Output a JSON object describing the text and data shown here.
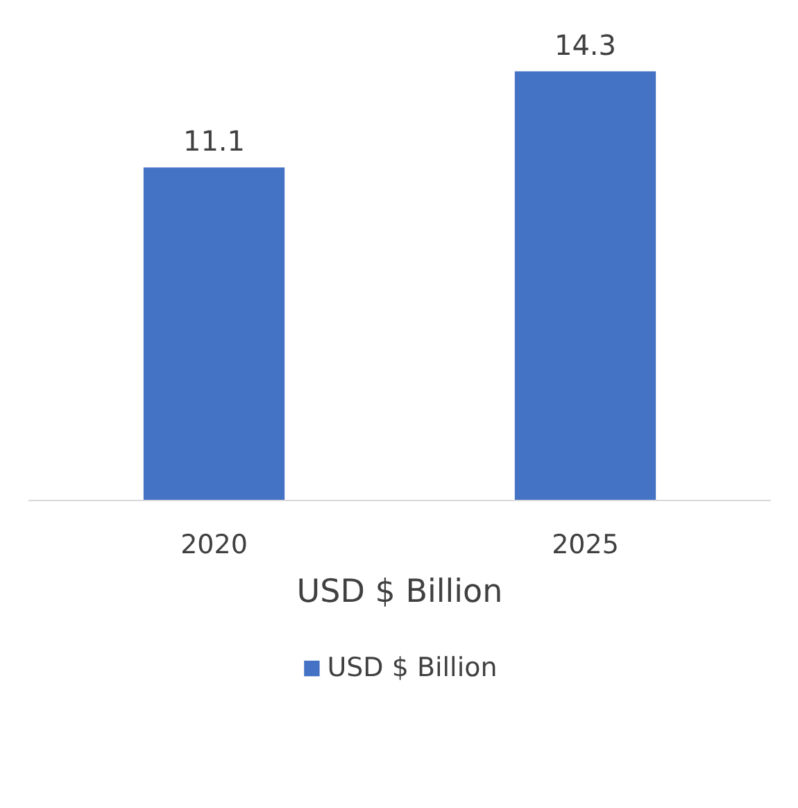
{
  "chart_data": {
    "type": "bar",
    "xlabel": "USD $ Billion",
    "categories": [
      "2020",
      "2025"
    ],
    "series": [
      {
        "name": "USD $ Billion",
        "color": "#4472c4",
        "values": [
          11.1,
          14.3
        ]
      }
    ],
    "data_labels": true,
    "legend": "bottom"
  }
}
